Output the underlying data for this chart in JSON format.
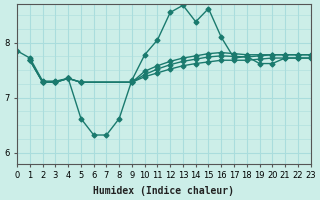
{
  "xlabel": "Humidex (Indice chaleur)",
  "ylabel": "",
  "bg_color": "#cceee8",
  "grid_color": "#aadddd",
  "line_color": "#1a7a6e",
  "xlim": [
    0,
    23
  ],
  "ylim": [
    5.8,
    8.7
  ],
  "xticks": [
    0,
    1,
    2,
    3,
    4,
    5,
    6,
    7,
    8,
    9,
    10,
    11,
    12,
    13,
    14,
    15,
    16,
    17,
    18,
    19,
    20,
    21,
    22,
    23
  ],
  "yticks": [
    6,
    7,
    8
  ],
  "lines": [
    {
      "x": [
        0,
        1,
        2,
        3,
        4,
        5,
        6,
        7,
        8,
        9,
        10,
        11,
        12,
        13,
        14,
        15,
        16,
        17,
        18,
        19,
        20,
        21,
        22,
        23
      ],
      "y": [
        7.85,
        7.72,
        7.3,
        7.3,
        7.35,
        6.62,
        6.32,
        6.32,
        6.62,
        7.32,
        7.78,
        8.05,
        8.55,
        8.68,
        8.38,
        8.62,
        8.1,
        7.72,
        7.75,
        7.62,
        7.62,
        7.72,
        7.72,
        7.72
      ]
    },
    {
      "x": [
        1,
        2,
        3,
        4,
        5,
        9,
        10,
        11,
        12,
        13,
        14,
        15,
        16,
        17,
        18,
        19,
        20,
        21,
        22,
        23
      ],
      "y": [
        7.68,
        7.28,
        7.28,
        7.35,
        7.28,
        7.28,
        7.38,
        7.45,
        7.52,
        7.58,
        7.62,
        7.65,
        7.68,
        7.68,
        7.68,
        7.7,
        7.72,
        7.72,
        7.72,
        7.72
      ]
    },
    {
      "x": [
        1,
        2,
        3,
        4,
        5,
        9,
        10,
        11,
        12,
        13,
        14,
        15,
        16,
        17,
        18,
        19,
        20,
        21,
        22,
        23
      ],
      "y": [
        7.68,
        7.28,
        7.28,
        7.35,
        7.28,
        7.28,
        7.42,
        7.52,
        7.6,
        7.66,
        7.7,
        7.74,
        7.76,
        7.75,
        7.74,
        7.76,
        7.78,
        7.78,
        7.78,
        7.78
      ]
    },
    {
      "x": [
        1,
        2,
        3,
        4,
        5,
        9,
        10,
        11,
        12,
        13,
        14,
        15,
        16,
        17,
        18,
        19,
        20,
        21,
        22,
        23
      ],
      "y": [
        7.68,
        7.28,
        7.28,
        7.35,
        7.28,
        7.28,
        7.48,
        7.58,
        7.66,
        7.72,
        7.76,
        7.8,
        7.82,
        7.8,
        7.78,
        7.78,
        7.78,
        7.78,
        7.78,
        7.78
      ]
    }
  ]
}
